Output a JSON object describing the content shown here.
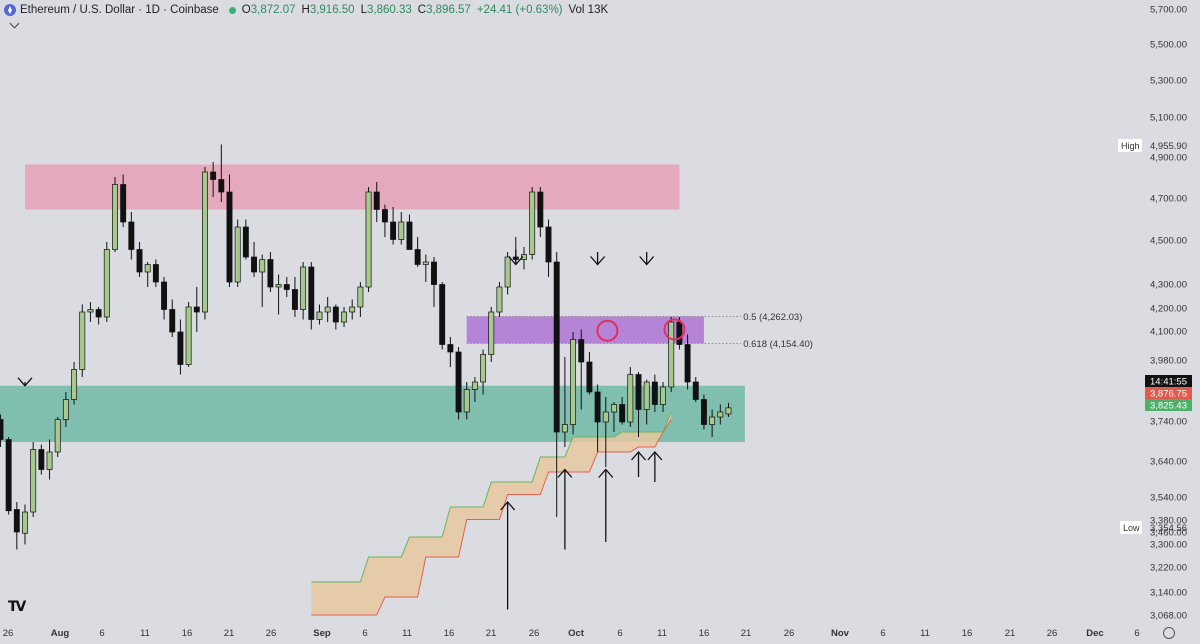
{
  "header": {
    "symbol": "Ethereum / U.S. Dollar · 1D · Coinbase",
    "o_label": "O",
    "o_value": "3,872.07",
    "h_label": "H",
    "h_value": "3,916.50",
    "l_label": "L",
    "l_value": "3,860.33",
    "c_label": "C",
    "c_value": "3,896.57",
    "change": "+24.41 (+0.63%)",
    "volume": "Vol 13K",
    "logo": "TV"
  },
  "colors": {
    "background": "#dadce2",
    "bull_candle": "#a8c98d",
    "bear_candle": "#111111",
    "resistance_zone": "#e6a3b9",
    "fib_zone": "#b07ad6",
    "support_zone": "#70b8a6",
    "cloud_fill": "#e7c8a0",
    "cloud_upper": "#6ab55f",
    "cloud_lower": "#e0624f",
    "marker_circle": "#e0305a"
  },
  "chart_data": {
    "type": "candlestick",
    "ylim": [
      3020,
      5760
    ],
    "y_ticks": [
      "5,700.00",
      "5,500.00",
      "5,300.00",
      "5,100.00",
      "4,900.00",
      "4,700.00",
      "4,500.00",
      "4,300.00",
      "4,200.00",
      "4,100.00",
      "3,980.00",
      "3,740.00",
      "3,640.00",
      "3,540.00",
      "3,460.00",
      "3,380.00",
      "3,300.00",
      "3,220.00",
      "3,140.00",
      "3,068.00"
    ],
    "x_ticks": [
      "26",
      "Aug",
      "6",
      "11",
      "16",
      "21",
      "26",
      "Sep",
      "6",
      "11",
      "16",
      "21",
      "26",
      "Oct",
      "6",
      "11",
      "16",
      "21",
      "26",
      "Nov",
      "6",
      "11",
      "16",
      "21",
      "26",
      "Dec",
      "6"
    ],
    "price_labels": {
      "high_label": "High",
      "high": "4,955.90",
      "low_label": "Low",
      "low": "3,354.56",
      "timer": "14:41:55",
      "price_red": "3,876.75",
      "price_green": "3,825.43"
    },
    "fib_levels": [
      {
        "label": "0.5 (4,262.03)",
        "value": 4262.03
      },
      {
        "label": "0.618 (4,154.40)",
        "value": 4154.4
      }
    ],
    "zones": [
      {
        "name": "resistance",
        "from_day": 0,
        "to_day": 80,
        "low": 4690,
        "high": 4870
      },
      {
        "name": "fib",
        "from_day": 54,
        "to_day": 83,
        "low": 4154.4,
        "high": 4262.03
      },
      {
        "name": "support",
        "from_day": -35,
        "to_day": 88,
        "low": 3760,
        "high": 3985
      }
    ],
    "candles": [
      [
        3760,
        3790,
        3705,
        3740
      ],
      [
        3745,
        3770,
        3720,
        3745
      ],
      [
        3740,
        3880,
        3720,
        3845
      ],
      [
        3845,
        3910,
        3800,
        3890
      ],
      [
        3890,
        3900,
        3830,
        3860
      ],
      [
        3860,
        3890,
        3820,
        3850
      ],
      [
        3855,
        3865,
        3820,
        3845
      ],
      [
        3850,
        3870,
        3740,
        3770
      ],
      [
        3770,
        3780,
        3470,
        3485
      ],
      [
        3490,
        3520,
        3330,
        3400
      ],
      [
        3395,
        3510,
        3350,
        3480
      ],
      [
        3480,
        3760,
        3460,
        3730
      ],
      [
        3730,
        3750,
        3630,
        3650
      ],
      [
        3650,
        3770,
        3610,
        3720
      ],
      [
        3720,
        3860,
        3700,
        3850
      ],
      [
        3850,
        3960,
        3820,
        3930
      ],
      [
        3930,
        4080,
        3910,
        4050
      ],
      [
        4050,
        4310,
        4020,
        4280
      ],
      [
        4280,
        4320,
        4240,
        4290
      ],
      [
        4290,
        4300,
        4230,
        4260
      ],
      [
        4260,
        4560,
        4240,
        4530
      ],
      [
        4530,
        4820,
        4520,
        4790
      ],
      [
        4790,
        4830,
        4620,
        4640
      ],
      [
        4640,
        4680,
        4490,
        4530
      ],
      [
        4530,
        4560,
        4420,
        4440
      ],
      [
        4440,
        4480,
        4380,
        4470
      ],
      [
        4470,
        4490,
        4380,
        4400
      ],
      [
        4400,
        4420,
        4250,
        4290
      ],
      [
        4290,
        4330,
        4180,
        4200
      ],
      [
        4200,
        4250,
        4030,
        4070
      ],
      [
        4070,
        4320,
        4060,
        4300
      ],
      [
        4300,
        4380,
        4200,
        4280
      ],
      [
        4280,
        4860,
        4250,
        4840
      ],
      [
        4840,
        4880,
        4740,
        4810
      ],
      [
        4810,
        4950,
        4720,
        4760
      ],
      [
        4760,
        4830,
        4380,
        4400
      ],
      [
        4400,
        4650,
        4380,
        4620
      ],
      [
        4620,
        4650,
        4490,
        4500
      ],
      [
        4500,
        4560,
        4420,
        4440
      ],
      [
        4440,
        4510,
        4300,
        4490
      ],
      [
        4490,
        4520,
        4360,
        4380
      ],
      [
        4380,
        4430,
        4270,
        4390
      ],
      [
        4390,
        4420,
        4340,
        4370
      ],
      [
        4370,
        4420,
        4260,
        4290
      ],
      [
        4290,
        4480,
        4250,
        4460
      ],
      [
        4460,
        4480,
        4210,
        4250
      ],
      [
        4250,
        4310,
        4230,
        4280
      ],
      [
        4280,
        4340,
        4240,
        4300
      ],
      [
        4300,
        4310,
        4210,
        4240
      ],
      [
        4240,
        4300,
        4220,
        4280
      ],
      [
        4280,
        4330,
        4250,
        4300
      ],
      [
        4300,
        4400,
        4260,
        4380
      ],
      [
        4380,
        4780,
        4360,
        4760
      ],
      [
        4760,
        4800,
        4640,
        4690
      ],
      [
        4690,
        4710,
        4580,
        4640
      ],
      [
        4640,
        4700,
        4550,
        4570
      ],
      [
        4570,
        4680,
        4550,
        4640
      ],
      [
        4640,
        4670,
        4530,
        4530
      ],
      [
        4530,
        4580,
        4460,
        4470
      ],
      [
        4470,
        4510,
        4400,
        4480
      ],
      [
        4480,
        4500,
        4300,
        4390
      ],
      [
        4390,
        4400,
        4130,
        4150
      ],
      [
        4150,
        4180,
        4060,
        4120
      ],
      [
        4120,
        4140,
        3850,
        3880
      ],
      [
        3880,
        4000,
        3850,
        3970
      ],
      [
        3970,
        4020,
        3920,
        4000
      ],
      [
        4000,
        4130,
        3950,
        4110
      ],
      [
        4110,
        4300,
        4080,
        4280
      ],
      [
        4280,
        4400,
        4260,
        4380
      ],
      [
        4380,
        4520,
        4350,
        4500
      ],
      [
        4500,
        4580,
        4470,
        4490
      ],
      [
        4490,
        4540,
        4450,
        4510
      ],
      [
        4510,
        4780,
        4490,
        4760
      ],
      [
        4760,
        4780,
        4580,
        4620
      ],
      [
        4620,
        4650,
        4420,
        4480
      ],
      [
        4480,
        4520,
        3460,
        3800
      ],
      [
        3800,
        4100,
        3740,
        3830
      ],
      [
        3830,
        4200,
        3790,
        4170
      ],
      [
        4170,
        4210,
        3890,
        4080
      ],
      [
        4080,
        4120,
        3950,
        3960
      ],
      [
        3960,
        3990,
        3720,
        3840
      ],
      [
        3840,
        3940,
        3660,
        3880
      ],
      [
        3880,
        3920,
        3800,
        3910
      ],
      [
        3910,
        3940,
        3830,
        3840
      ],
      [
        3840,
        4060,
        3820,
        4030
      ],
      [
        4030,
        4040,
        3780,
        3890
      ],
      [
        3890,
        4010,
        3830,
        4000
      ],
      [
        4000,
        4030,
        3880,
        3910
      ],
      [
        3910,
        4000,
        3880,
        3980
      ],
      [
        3980,
        4260,
        3960,
        4240
      ],
      [
        4240,
        4260,
        4130,
        4150
      ],
      [
        4150,
        4190,
        3970,
        4000
      ],
      [
        4000,
        4020,
        3920,
        3930
      ],
      [
        3930,
        3950,
        3810,
        3830
      ],
      [
        3830,
        3890,
        3780,
        3860
      ],
      [
        3860,
        3910,
        3830,
        3880
      ],
      [
        3872.07,
        3916.5,
        3860.33,
        3896.57
      ]
    ],
    "cloud": {
      "upper": [
        [
          35,
          3200
        ],
        [
          41,
          3200
        ],
        [
          42,
          3300
        ],
        [
          46,
          3300
        ],
        [
          47,
          3380
        ],
        [
          51,
          3380
        ],
        [
          52,
          3500
        ],
        [
          56,
          3500
        ],
        [
          57,
          3600
        ],
        [
          62,
          3600
        ],
        [
          63,
          3700
        ],
        [
          66,
          3700
        ],
        [
          67,
          3780
        ],
        [
          72,
          3780
        ],
        [
          73,
          3800
        ],
        [
          78,
          3800
        ],
        [
          79,
          3880
        ]
      ],
      "lower": [
        [
          35,
          3068
        ],
        [
          43,
          3068
        ],
        [
          44,
          3140
        ],
        [
          48,
          3140
        ],
        [
          49,
          3300
        ],
        [
          53,
          3300
        ],
        [
          54,
          3450
        ],
        [
          58,
          3450
        ],
        [
          59,
          3550
        ],
        [
          63,
          3550
        ],
        [
          64,
          3640
        ],
        [
          69,
          3640
        ],
        [
          70,
          3720
        ],
        [
          74,
          3720
        ],
        [
          75,
          3740
        ],
        [
          77,
          3740
        ],
        [
          78,
          3800
        ],
        [
          79,
          3850
        ]
      ]
    },
    "arrows": [
      {
        "day": 0,
        "from": 4000,
        "to": 3985
      },
      {
        "day": 60,
        "from": 4530,
        "to": 4470
      },
      {
        "day": 70,
        "from": 4520,
        "to": 4470
      },
      {
        "day": 76,
        "from": 4520,
        "to": 4470
      },
      {
        "day": 59,
        "from": 3090,
        "to": 3520
      },
      {
        "day": 66,
        "from": 3330,
        "to": 3650
      },
      {
        "day": 71,
        "from": 3360,
        "to": 3650
      },
      {
        "day": 75,
        "from": 3620,
        "to": 3720
      },
      {
        "day": 77,
        "from": 3600,
        "to": 3720
      }
    ],
    "circles": [
      {
        "day": 71.2,
        "value": 4205
      },
      {
        "day": 79.4,
        "value": 4210
      }
    ]
  }
}
